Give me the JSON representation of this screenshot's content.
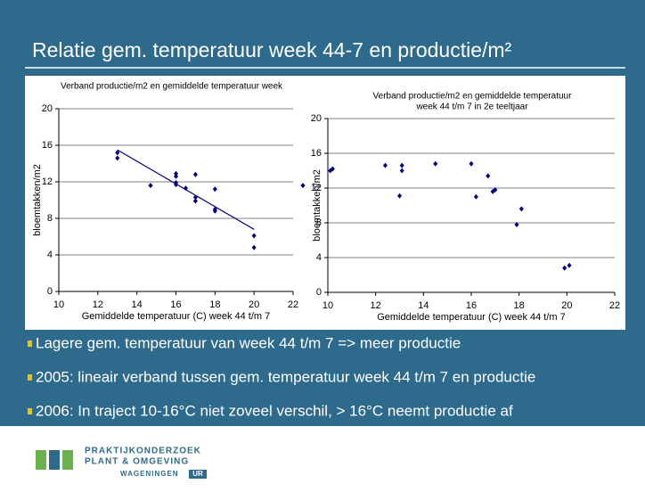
{
  "slide_title": "Relatie gem. temperatuur week 44-7 en productie/m²",
  "chart_data": [
    {
      "type": "scatter",
      "title_lines": [
        "Verband productie/m2 en gemiddelde temperatuur week"
      ],
      "xlabel": "Gemiddelde temperatuur (C) week 44 t/m 7",
      "ylabel": "bloemtakken/m2",
      "xlim": [
        10,
        22
      ],
      "xticks": [
        10,
        12,
        14,
        16,
        18,
        20,
        22
      ],
      "ylim": [
        0,
        20
      ],
      "yticks": [
        0,
        4,
        8,
        12,
        16,
        20
      ],
      "grid": true,
      "color": "#000080",
      "x": [
        13,
        13,
        14.7,
        16,
        16,
        16,
        16,
        16.5,
        17,
        17,
        17,
        18,
        18,
        18,
        20,
        20,
        22.5
      ],
      "values": [
        15.2,
        14.6,
        11.6,
        12.9,
        12.6,
        11.9,
        11.7,
        11.3,
        12.8,
        10.3,
        9.9,
        11.2,
        9.0,
        8.8,
        6.1,
        4.8,
        11.6
      ],
      "trendline": {
        "x": [
          13,
          20
        ],
        "y": [
          15.5,
          6.8
        ]
      }
    },
    {
      "type": "scatter",
      "title_lines": [
        "Verband productie/m2 en gemiddelde temperatuur",
        "week 44 t/m 7 in 2e teeltjaar"
      ],
      "xlabel": "Gemiddelde temperatuur (C) week 44 t/m 7",
      "ylabel": "bloemtakken/m2",
      "xlim": [
        10,
        22
      ],
      "xticks": [
        10,
        12,
        14,
        16,
        18,
        20,
        22
      ],
      "ylim": [
        0,
        20
      ],
      "yticks": [
        0,
        4,
        8,
        12,
        16,
        20
      ],
      "grid": true,
      "color": "#000080",
      "x": [
        10.1,
        10.2,
        12.4,
        13.0,
        13.1,
        13.1,
        14.5,
        16.0,
        16.2,
        16.7,
        16.9,
        17.0,
        17.9,
        18.1,
        19.9,
        20.1
      ],
      "values": [
        14.0,
        14.2,
        14.6,
        11.1,
        14.6,
        14.0,
        14.8,
        14.8,
        11.0,
        13.4,
        11.6,
        11.8,
        7.8,
        9.6,
        2.8,
        3.1
      ]
    }
  ],
  "bullets": [
    "Lagere gem. temperatuur van week 44 t/m 7 => meer productie",
    "2005: lineair verband tussen gem. temperatuur week 44 t/m 7 en productie",
    "2006: In traject 10-16°C niet zoveel verschil, > 16°C neemt productie af"
  ],
  "logo": {
    "line1": "PRAKTIJKONDERZOEK",
    "line2": "PLANT & OMGEVING",
    "org": "WAGENINGEN",
    "badge": "UR"
  }
}
